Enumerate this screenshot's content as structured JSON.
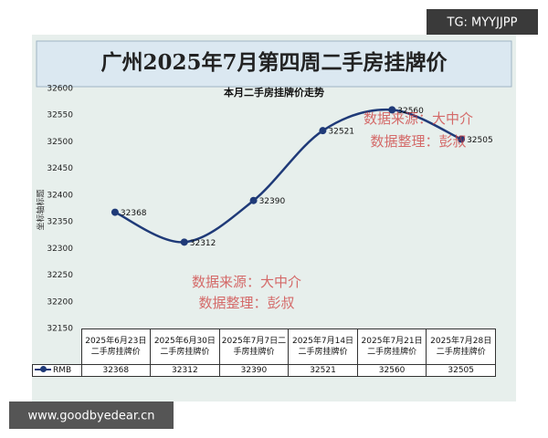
{
  "chart_data": {
    "type": "line",
    "title": "广州2025年7月第四周二手房挂牌价",
    "subtitle": "本月二手房挂牌价走势",
    "y_label": "坐标轴标题",
    "categories": [
      "2025年6月23日二手房挂牌价",
      "2025年6月30日二手房挂牌价",
      "2025年7月7日二手房挂牌价",
      "2025年7月14日二手房挂牌价",
      "2025年7月21日二手房挂牌价",
      "2025年7月28日二手房挂牌价"
    ],
    "series": [
      {
        "name": "RMB",
        "color": "#1f3a78",
        "values": [
          32368,
          32312,
          32390,
          32521,
          32560,
          32505
        ]
      }
    ],
    "ylim": [
      32150,
      32600
    ],
    "yticks": [
      32150,
      32200,
      32250,
      32300,
      32350,
      32400,
      32450,
      32500,
      32550,
      32600
    ],
    "grid": false,
    "annotations": [
      "数据来源：大中介",
      "数据整理：彭叔",
      "数据来源：大中介",
      "数据整理：彭叔"
    ]
  },
  "watermarks": [
    "TG: MYYJJPP",
    "www.goodbyedear.cn"
  ]
}
